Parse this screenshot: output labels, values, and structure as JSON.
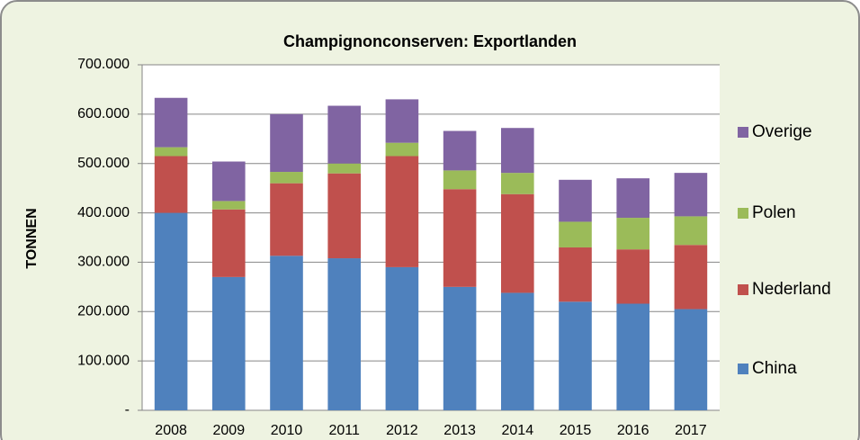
{
  "chart_data": {
    "type": "stacked_bar",
    "title": "Champignonconserven: Exportlanden",
    "y_label": "TONNEN",
    "categories": [
      "2008",
      "2009",
      "2010",
      "2011",
      "2012",
      "2013",
      "2014",
      "2015",
      "2016",
      "2017"
    ],
    "series": [
      {
        "name": "China",
        "color": "#4f81bd",
        "values": [
          400000,
          270000,
          313000,
          308000,
          290000,
          250000,
          238000,
          220000,
          216000,
          205000
        ]
      },
      {
        "name": "Nederland",
        "color": "#c0504d",
        "values": [
          115000,
          137000,
          147000,
          172000,
          225000,
          198000,
          200000,
          110000,
          110000,
          130000
        ]
      },
      {
        "name": "Polen",
        "color": "#9bbb59",
        "values": [
          18000,
          17000,
          23000,
          20000,
          27000,
          38000,
          43000,
          52000,
          64000,
          58000
        ]
      },
      {
        "name": "Overige",
        "color": "#8064a2",
        "values": [
          100000,
          80000,
          117000,
          117000,
          88000,
          80000,
          91000,
          85000,
          80000,
          88000
        ]
      }
    ],
    "ylim": [
      0,
      700000
    ],
    "yticks": [
      {
        "value": 0,
        "label": "-"
      },
      {
        "value": 100000,
        "label": "100.000"
      },
      {
        "value": 200000,
        "label": "200.000"
      },
      {
        "value": 300000,
        "label": "300.000"
      },
      {
        "value": 400000,
        "label": "400.000"
      },
      {
        "value": 500000,
        "label": "500.000"
      },
      {
        "value": 600000,
        "label": "600.000"
      },
      {
        "value": 700000,
        "label": "700.000"
      }
    ],
    "grid": true,
    "legend": "right"
  }
}
